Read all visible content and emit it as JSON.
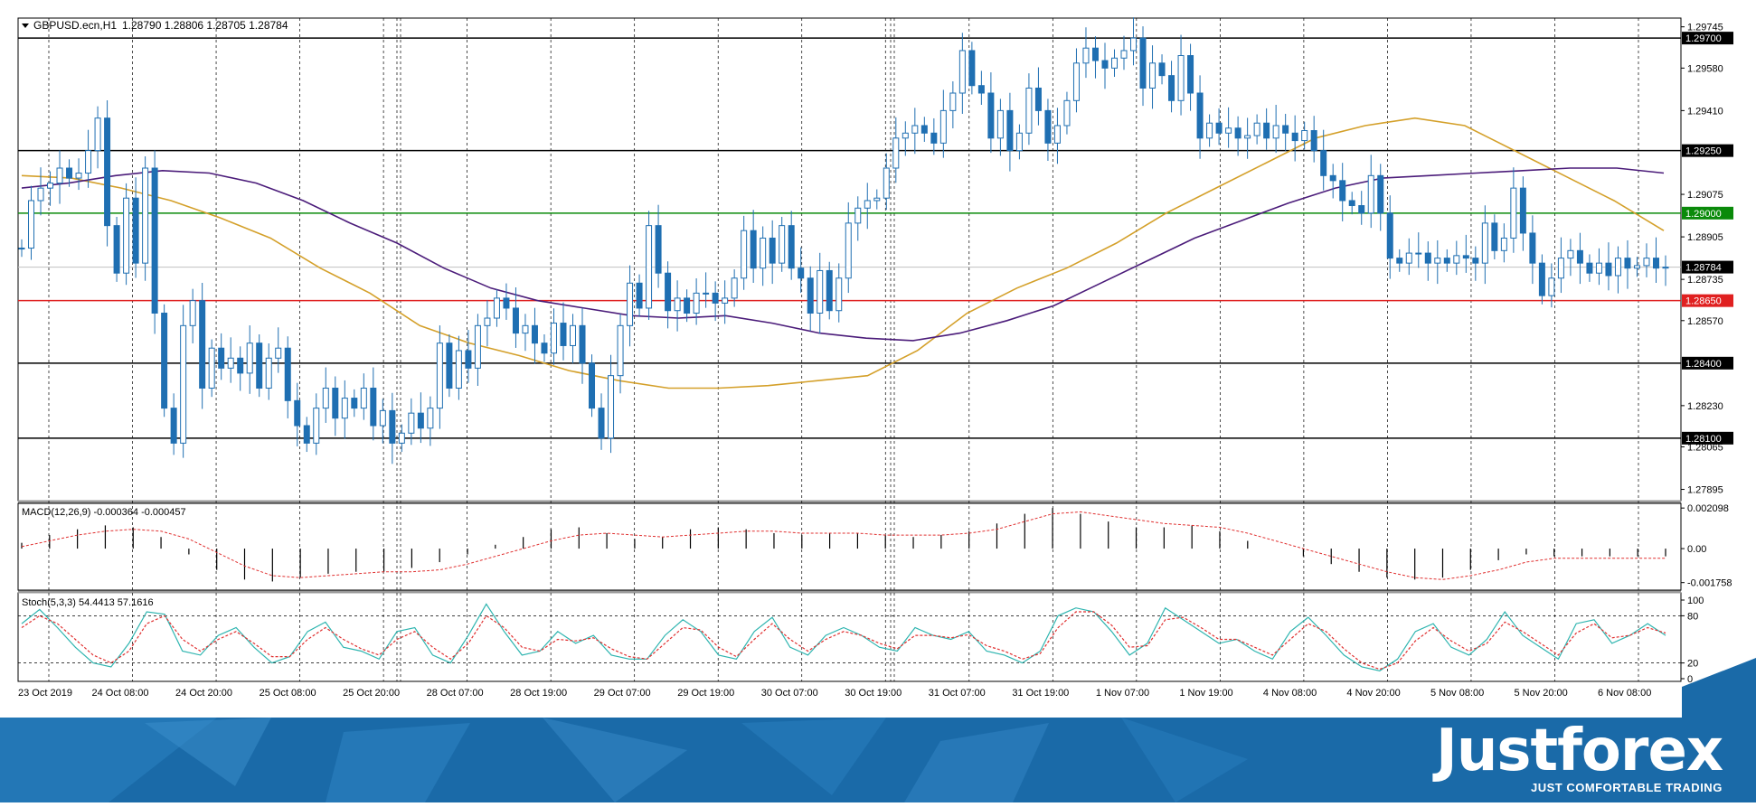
{
  "header": {
    "symbol": "GBPUSD.ecn,H1",
    "ohlc": "1.28790 1.28806 1.28705 1.28784"
  },
  "indicators": {
    "macd_label": "MACD(12,26,9) -0.000364 -0.000457",
    "stoch_label": "Stoch(5,3,3) 54.4413 57.1616"
  },
  "brand": {
    "name": "Justforex",
    "tagline": "JUST COMFORTABLE TRADING"
  },
  "colors": {
    "candle": "#1f6fb2",
    "ma_fast": "#d4a02a",
    "ma_slow": "#4b1c7a",
    "level_green": "#0a8a0a",
    "level_red": "#e02020",
    "level_black": "#000000",
    "macd_signal": "#e03030",
    "stoch_main": "#2fb5b0",
    "stoch_signal": "#e03030",
    "brand_blue": "#1a6aa8"
  },
  "chart_data": [
    {
      "type": "candlestick",
      "title": "GBPUSD.ecn,H1",
      "ylim": [
        1.2785,
        1.2978
      ],
      "y_ticks": [
        "1.29745",
        "1.29580",
        "1.29410",
        "1.29075",
        "1.28905",
        "1.28735",
        "1.28570",
        "1.28230",
        "1.28065",
        "1.27895"
      ],
      "x_ticks": [
        "23 Oct 2019",
        "24 Oct 08:00",
        "24 Oct 20:00",
        "25 Oct 08:00",
        "25 Oct 20:00",
        "28 Oct 07:00",
        "28 Oct 19:00",
        "29 Oct 07:00",
        "29 Oct 19:00",
        "30 Oct 07:00",
        "30 Oct 19:00",
        "31 Oct 07:00",
        "31 Oct 19:00",
        "1 Nov 07:00",
        "1 Nov 19:00",
        "4 Nov 08:00",
        "4 Nov 20:00",
        "5 Nov 08:00",
        "5 Nov 20:00",
        "6 Nov 08:00"
      ],
      "levels": [
        {
          "value": 1.297,
          "label": "1.29700",
          "color": "black"
        },
        {
          "value": 1.2925,
          "label": "1.29250",
          "color": "black"
        },
        {
          "value": 1.29,
          "label": "1.29000",
          "color": "green"
        },
        {
          "value": 1.28784,
          "label": "1.28784",
          "color": "current"
        },
        {
          "value": 1.2865,
          "label": "1.28650",
          "color": "red"
        },
        {
          "value": 1.284,
          "label": "1.28400",
          "color": "black"
        },
        {
          "value": 1.281,
          "label": "1.28100",
          "color": "black"
        }
      ],
      "price_path": [
        1.2886,
        1.2905,
        1.291,
        1.2912,
        1.2918,
        1.2914,
        1.2916,
        1.2925,
        1.2938,
        1.2895,
        1.2876,
        1.2906,
        1.288,
        1.2918,
        1.286,
        1.2822,
        1.2808,
        1.2855,
        1.2865,
        1.283,
        1.2846,
        1.2838,
        1.2842,
        1.2836,
        1.2848,
        1.283,
        1.2842,
        1.2846,
        1.2825,
        1.2815,
        1.2808,
        1.2822,
        1.283,
        1.2818,
        1.2826,
        1.2822,
        1.283,
        1.2815,
        1.2821,
        1.2808,
        1.2812,
        1.282,
        1.2814,
        1.2822,
        1.2848,
        1.283,
        1.2845,
        1.2838,
        1.2855,
        1.2858,
        1.2866,
        1.2862,
        1.2852,
        1.2855,
        1.2848,
        1.2844,
        1.2856,
        1.2847,
        1.2855,
        1.284,
        1.2822,
        1.281,
        1.2835,
        1.2855,
        1.2872,
        1.2862,
        1.2895,
        1.2876,
        1.2861,
        1.2866,
        1.286,
        1.2868,
        1.2868,
        1.2864,
        1.2866,
        1.2874,
        1.2893,
        1.2878,
        1.289,
        1.288,
        1.2895,
        1.2878,
        1.2874,
        1.286,
        1.2877,
        1.2861,
        1.2874,
        1.2896,
        1.2902,
        1.2905,
        1.2906,
        1.2918,
        1.293,
        1.2932,
        1.2935,
        1.2932,
        1.2928,
        1.2941,
        1.2948,
        1.2965,
        1.2951,
        1.2948,
        1.293,
        1.2941,
        1.2925,
        1.2932,
        1.295,
        1.2941,
        1.2928,
        1.2935,
        1.2945,
        1.296,
        1.2966,
        1.2961,
        1.2958,
        1.2962,
        1.2965,
        1.297,
        1.295,
        1.296,
        1.2955,
        1.2945,
        1.2963,
        1.2948,
        1.293,
        1.2936,
        1.2932,
        1.2934,
        1.293,
        1.2931,
        1.2936,
        1.293,
        1.2935,
        1.2932,
        1.2929,
        1.2933,
        1.2925,
        1.2915,
        1.2913,
        1.2905,
        1.2903,
        1.29,
        1.2915,
        1.29,
        1.2882,
        1.288,
        1.2884,
        1.2884,
        1.288,
        1.2882,
        1.288,
        1.2883,
        1.2882,
        1.288,
        1.2896,
        1.2885,
        1.289,
        1.291,
        1.2892,
        1.288,
        1.2867,
        1.2874,
        1.2882,
        1.2885,
        1.288,
        1.2876,
        1.288,
        1.2875,
        1.2882,
        1.2878,
        1.2879,
        1.2882,
        1.2878,
        1.28784
      ],
      "ma_fast_path": [
        1.2915,
        1.2914,
        1.291,
        1.2905,
        1.2898,
        1.289,
        1.2878,
        1.2868,
        1.2855,
        1.2848,
        1.2843,
        1.2837,
        1.2833,
        1.283,
        1.283,
        1.2831,
        1.2833,
        1.2835,
        1.2845,
        1.286,
        1.287,
        1.2878,
        1.2888,
        1.29,
        1.291,
        1.292,
        1.293,
        1.2935,
        1.2938,
        1.2935,
        1.2925,
        1.2915,
        1.2905,
        1.2893
      ],
      "ma_slow_path": [
        1.291,
        1.2912,
        1.2915,
        1.2917,
        1.2916,
        1.2912,
        1.2905,
        1.2896,
        1.2888,
        1.2878,
        1.287,
        1.2865,
        1.2862,
        1.2859,
        1.2858,
        1.2859,
        1.2856,
        1.2852,
        1.285,
        1.2849,
        1.2852,
        1.2857,
        1.2863,
        1.2872,
        1.2881,
        1.289,
        1.2897,
        1.2904,
        1.291,
        1.2914,
        1.2915,
        1.2916,
        1.2917,
        1.2918,
        1.2918,
        1.2916
      ]
    },
    {
      "type": "bar",
      "title": "MACD(12,26,9) -0.000364 -0.000457",
      "ylim": [
        -0.0021,
        0.0022
      ],
      "y_ticks": [
        "0.002098",
        "0.00",
        "-0.001758"
      ],
      "histogram": [
        0.0003,
        0.0007,
        0.001,
        0.0012,
        0.0011,
        0.0006,
        -0.0003,
        -0.0011,
        -0.0016,
        -0.0017,
        -0.0015,
        -0.0013,
        -0.0012,
        -0.0012,
        -0.001,
        -0.0007,
        -0.0003,
        0.0002,
        0.0006,
        0.001,
        0.0011,
        0.0008,
        0.0005,
        0.0006,
        0.001,
        0.0011,
        0.001,
        0.0008,
        0.0007,
        0.0008,
        0.0008,
        0.0007,
        0.0006,
        0.0007,
        0.0009,
        0.0013,
        0.0018,
        0.0021,
        0.0018,
        0.0014,
        0.0011,
        0.0011,
        0.0012,
        0.0009,
        0.0004,
        0.0,
        -0.0004,
        -0.0008,
        -0.0012,
        -0.0015,
        -0.0016,
        -0.0015,
        -0.0011,
        -0.0006,
        -0.0003,
        -0.0004,
        -0.0004,
        -0.0004,
        -0.0004,
        -0.0004
      ],
      "signal": [
        0.0001,
        0.0004,
        0.0007,
        0.0009,
        0.001,
        0.0009,
        0.0005,
        -0.0002,
        -0.0009,
        -0.0014,
        -0.0015,
        -0.0014,
        -0.0013,
        -0.0012,
        -0.0012,
        -0.0011,
        -0.0008,
        -0.0004,
        0.0,
        0.0004,
        0.0007,
        0.0008,
        0.0007,
        0.0006,
        0.0007,
        0.0008,
        0.0009,
        0.0009,
        0.0008,
        0.0008,
        0.0008,
        0.0007,
        0.0007,
        0.0007,
        0.0008,
        0.001,
        0.0014,
        0.0018,
        0.0019,
        0.0017,
        0.0015,
        0.0013,
        0.0012,
        0.0011,
        0.0008,
        0.0004,
        0.0,
        -0.0004,
        -0.0008,
        -0.0012,
        -0.0015,
        -0.0016,
        -0.0014,
        -0.0011,
        -0.0007,
        -0.0005,
        -0.0005,
        -0.0005,
        -0.0005,
        -0.0005
      ]
    },
    {
      "type": "line",
      "title": "Stoch(5,3,3) 54.4413 57.1616",
      "ylim": [
        0,
        100
      ],
      "y_ticks": [
        "100",
        "80",
        "20",
        "0"
      ],
      "series": [
        {
          "values": [
            70,
            88,
            65,
            40,
            20,
            15,
            45,
            85,
            82,
            35,
            30,
            55,
            65,
            40,
            20,
            28,
            60,
            72,
            40,
            35,
            25,
            60,
            65,
            30,
            20,
            55,
            95,
            60,
            30,
            35,
            60,
            45,
            55,
            30,
            25,
            25,
            55,
            75,
            60,
            30,
            25,
            60,
            78,
            40,
            30,
            55,
            65,
            55,
            40,
            35,
            65,
            55,
            50,
            60,
            35,
            30,
            20,
            35,
            80,
            90,
            85,
            60,
            30,
            45,
            90,
            75,
            60,
            45,
            50,
            35,
            25,
            60,
            78,
            55,
            30,
            15,
            10,
            25,
            60,
            70,
            40,
            30,
            50,
            85,
            55,
            40,
            25,
            70,
            75,
            45,
            55,
            70,
            55
          ]
        },
        {
          "values": [
            65,
            80,
            70,
            50,
            30,
            20,
            35,
            70,
            80,
            50,
            35,
            50,
            60,
            45,
            28,
            28,
            50,
            65,
            50,
            38,
            30,
            50,
            60,
            40,
            25,
            45,
            80,
            65,
            40,
            35,
            50,
            48,
            52,
            38,
            28,
            25,
            45,
            65,
            62,
            40,
            28,
            50,
            70,
            50,
            35,
            50,
            60,
            55,
            45,
            38,
            55,
            55,
            52,
            56,
            42,
            35,
            25,
            32,
            65,
            85,
            85,
            68,
            40,
            42,
            75,
            78,
            65,
            50,
            50,
            40,
            30,
            50,
            70,
            60,
            38,
            20,
            12,
            20,
            48,
            65,
            48,
            35,
            45,
            72,
            60,
            45,
            30,
            58,
            70,
            52,
            55,
            65,
            58
          ]
        }
      ],
      "levels": [
        80,
        20
      ]
    }
  ]
}
